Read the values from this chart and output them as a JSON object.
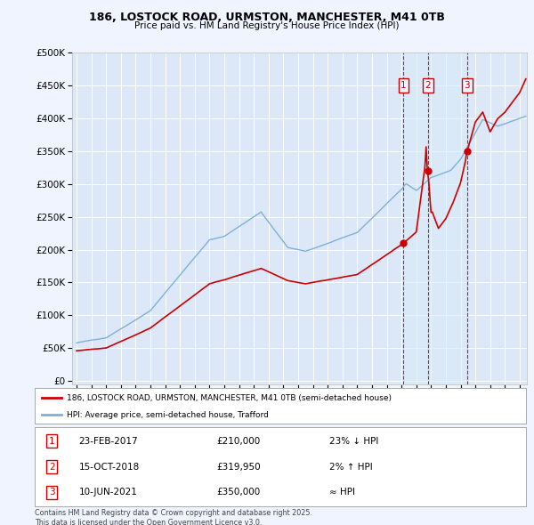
{
  "title_line1": "186, LOSTOCK ROAD, URMSTON, MANCHESTER, M41 0TB",
  "title_line2": "Price paid vs. HM Land Registry's House Price Index (HPI)",
  "ytick_values": [
    0,
    50000,
    100000,
    150000,
    200000,
    250000,
    300000,
    350000,
    400000,
    450000,
    500000
  ],
  "xlim": [
    1994.7,
    2025.5
  ],
  "ylim": [
    -5000,
    500000
  ],
  "background_color": "#f0f4ff",
  "plot_background": "#dce8f8",
  "shade_color": "#ccdff5",
  "grid_color": "#ffffff",
  "red_color": "#cc0000",
  "blue_color": "#7fb0d8",
  "sale_points": [
    {
      "year": 2017.14,
      "price": 210000,
      "label": "1"
    },
    {
      "year": 2018.79,
      "price": 319950,
      "label": "2"
    },
    {
      "year": 2021.44,
      "price": 350000,
      "label": "3"
    }
  ],
  "legend_entries": [
    "186, LOSTOCK ROAD, URMSTON, MANCHESTER, M41 0TB (semi-detached house)",
    "HPI: Average price, semi-detached house, Trafford"
  ],
  "table_rows": [
    {
      "num": "1",
      "date": "23-FEB-2017",
      "price": "£210,000",
      "vs_hpi": "23% ↓ HPI"
    },
    {
      "num": "2",
      "date": "15-OCT-2018",
      "price": "£319,950",
      "vs_hpi": "2% ↑ HPI"
    },
    {
      "num": "3",
      "date": "10-JUN-2021",
      "price": "£350,000",
      "vs_hpi": "≈ HPI"
    }
  ],
  "footer": "Contains HM Land Registry data © Crown copyright and database right 2025.\nThis data is licensed under the Open Government Licence v3.0."
}
